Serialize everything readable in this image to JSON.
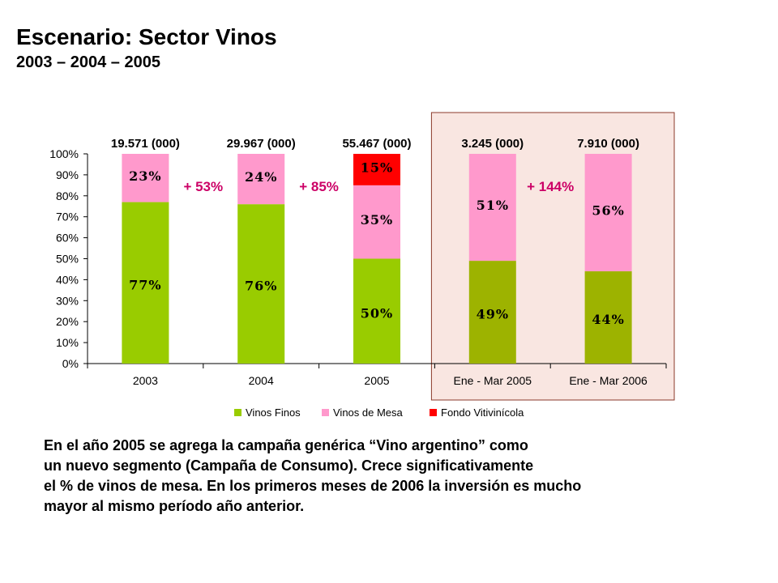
{
  "header": {
    "title": "Escenario: Sector Vinos",
    "subtitle": "2003 – 2004 – 2005"
  },
  "description": [
    "En el año 2005 se agrega la campaña genérica “Vino argentino” como",
    "un nuevo segmento (Campaña de Consumo). Crece significativamente",
    "el % de vinos de mesa. En los primeros meses de 2006 la inversión es mucho",
    "mayor al mismo período año anterior."
  ],
  "colors": {
    "vinos_finos": "#99cc00",
    "vinos_finos_dark": "#9db300",
    "vinos_de_mesa": "#ff99cc",
    "fondo_vitivinicola": "#ff0000",
    "growth_label": "#cc0066",
    "highlight_bg": "#f9e6e1",
    "highlight_border": "#8b3a2a"
  },
  "chart_data": {
    "type": "bar",
    "stacked": true,
    "categories": [
      "2003",
      "2004",
      "2005",
      "Ene - Mar 2005",
      "Ene - Mar 2006"
    ],
    "series": [
      {
        "name": "Vinos Finos",
        "values": [
          77,
          76,
          50,
          49,
          44
        ],
        "labels": [
          "77%",
          "76%",
          "50%",
          "49%",
          "44%"
        ]
      },
      {
        "name": "Vinos de Mesa",
        "values": [
          23,
          24,
          35,
          51,
          56
        ],
        "labels": [
          "23%",
          "24%",
          "35%",
          "51%",
          "56%"
        ]
      },
      {
        "name": "Fondo Vitivinícola",
        "values": [
          0,
          0,
          15,
          0,
          0
        ],
        "labels": [
          "",
          "",
          "15%",
          "",
          ""
        ]
      }
    ],
    "totals": [
      "19.571 (000)",
      "29.967 (000)",
      "55.467 (000)",
      "3.245 (000)",
      "7.910 (000)"
    ],
    "growth_annotations": [
      {
        "between": [
          "2003",
          "2004"
        ],
        "text": "+ 53%"
      },
      {
        "between": [
          "2004",
          "2005"
        ],
        "text": "+ 85%"
      },
      {
        "between": [
          "Ene - Mar 2005",
          "Ene - Mar 2006"
        ],
        "text": "+ 144%"
      }
    ],
    "yticks": [
      "0%",
      "10%",
      "20%",
      "30%",
      "40%",
      "50%",
      "60%",
      "70%",
      "80%",
      "90%",
      "100%"
    ],
    "ylim": [
      0,
      100
    ],
    "legend_position": "bottom",
    "highlighted_categories": [
      "Ene - Mar 2005",
      "Ene - Mar 2006"
    ]
  }
}
